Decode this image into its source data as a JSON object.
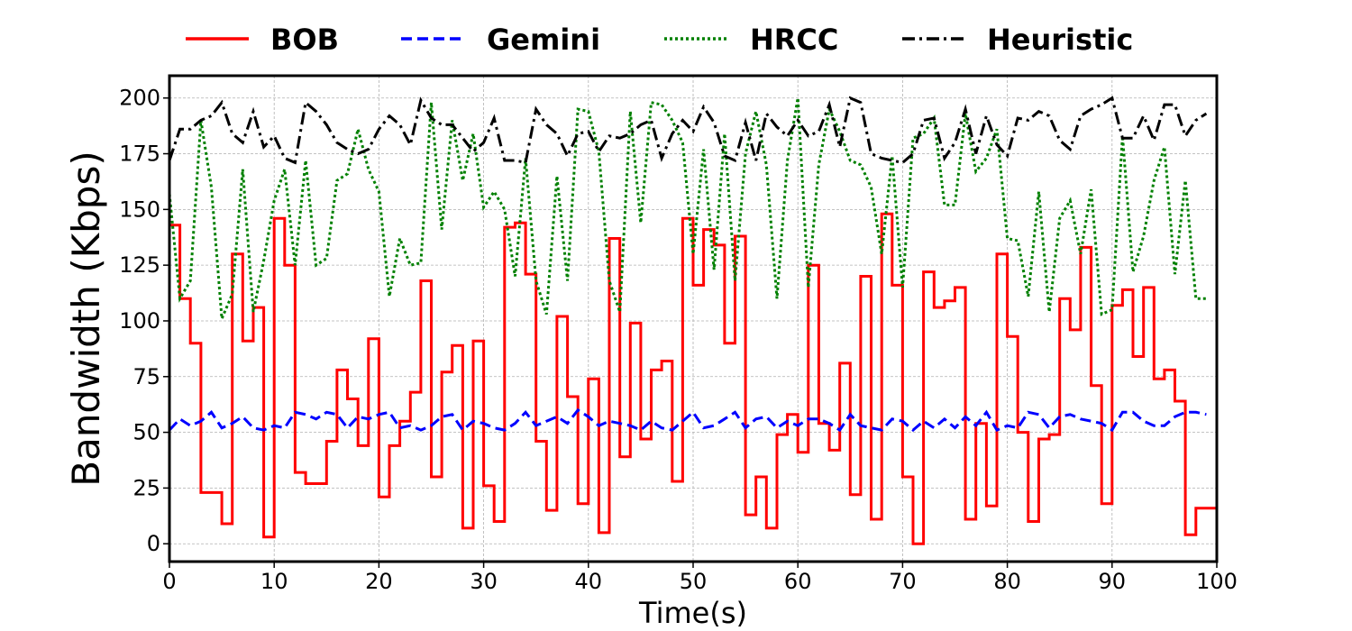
{
  "chart_data": {
    "type": "line",
    "title": "",
    "xlabel": "Time(s)",
    "ylabel": "Bandwidth (Kbps)",
    "xlim": [
      0,
      100
    ],
    "ylim": [
      -8,
      210
    ],
    "xticks": [
      0,
      10,
      20,
      30,
      40,
      50,
      60,
      70,
      80,
      90,
      100
    ],
    "yticks": [
      0,
      25,
      50,
      75,
      100,
      125,
      150,
      175,
      200
    ],
    "grid": true,
    "legend_position": "top, outside plot, horizontal",
    "series": [
      {
        "name": "BOB",
        "color": "#ff0000",
        "style": "solid-step",
        "x": [
          0,
          1,
          2,
          3,
          4,
          5,
          6,
          7,
          8,
          9,
          10,
          11,
          12,
          13,
          14,
          15,
          16,
          17,
          18,
          19,
          20,
          21,
          22,
          23,
          24,
          25,
          26,
          27,
          28,
          29,
          30,
          31,
          32,
          33,
          34,
          35,
          36,
          37,
          38,
          39,
          40,
          41,
          42,
          43,
          44,
          45,
          46,
          47,
          48,
          49,
          50,
          51,
          52,
          53,
          54,
          55,
          56,
          57,
          58,
          59,
          60,
          61,
          62,
          63,
          64,
          65,
          66,
          67,
          68,
          69,
          70,
          71,
          72,
          73,
          74,
          75,
          76,
          77,
          78,
          79,
          80,
          81,
          82,
          83,
          84,
          85,
          86,
          87,
          88,
          89,
          90,
          91,
          92,
          93,
          94,
          95,
          96,
          97,
          98,
          99
        ],
        "values": [
          143,
          110,
          90,
          23,
          23,
          9,
          130,
          91,
          106,
          3,
          146,
          125,
          32,
          27,
          27,
          46,
          78,
          65,
          44,
          92,
          21,
          44,
          55,
          68,
          118,
          30,
          77,
          89,
          7,
          91,
          26,
          10,
          142,
          144,
          121,
          46,
          15,
          102,
          66,
          18,
          74,
          5,
          137,
          39,
          99,
          47,
          78,
          82,
          28,
          146,
          116,
          141,
          134,
          90,
          138,
          13,
          30,
          7,
          49,
          58,
          41,
          125,
          54,
          42,
          81,
          22,
          120,
          11,
          148,
          116,
          30,
          0,
          122,
          106,
          109,
          115,
          11,
          54,
          17,
          130,
          93,
          50,
          10,
          47,
          49,
          110,
          96,
          133,
          71,
          18,
          107,
          114,
          84,
          115,
          74,
          78,
          64,
          4,
          16,
          16
        ]
      },
      {
        "name": "Gemini",
        "color": "#0000ff",
        "style": "dashed",
        "x": [
          0,
          1,
          2,
          3,
          4,
          5,
          6,
          7,
          8,
          9,
          10,
          11,
          12,
          13,
          14,
          15,
          16,
          17,
          18,
          19,
          20,
          21,
          22,
          23,
          24,
          25,
          26,
          27,
          28,
          29,
          30,
          31,
          32,
          33,
          34,
          35,
          36,
          37,
          38,
          39,
          40,
          41,
          42,
          43,
          44,
          45,
          46,
          47,
          48,
          49,
          50,
          51,
          52,
          53,
          54,
          55,
          56,
          57,
          58,
          59,
          60,
          61,
          62,
          63,
          64,
          65,
          66,
          67,
          68,
          69,
          70,
          71,
          72,
          73,
          74,
          75,
          76,
          77,
          78,
          79,
          80,
          81,
          82,
          83,
          84,
          85,
          86,
          87,
          88,
          89,
          90,
          91,
          92,
          93,
          94,
          95,
          96,
          97,
          98,
          99
        ],
        "values": [
          51,
          56,
          53,
          55,
          59,
          52,
          54,
          57,
          52,
          51,
          53,
          52,
          59,
          58,
          56,
          59,
          58,
          52,
          57,
          56,
          58,
          59,
          52,
          53,
          51,
          53,
          57,
          58,
          51,
          55,
          54,
          52,
          51,
          54,
          59,
          53,
          55,
          57,
          54,
          60,
          57,
          53,
          55,
          54,
          53,
          51,
          55,
          52,
          51,
          55,
          59,
          52,
          53,
          56,
          59,
          52,
          56,
          57,
          52,
          55,
          53,
          56,
          56,
          54,
          51,
          58,
          53,
          52,
          51,
          56,
          55,
          51,
          55,
          52,
          56,
          52,
          57,
          53,
          59,
          51,
          53,
          52,
          59,
          58,
          52,
          57,
          58,
          56,
          55,
          54,
          51,
          59,
          59,
          55,
          53,
          53,
          57,
          59,
          59,
          58
        ]
      },
      {
        "name": "HRCC",
        "color": "#008000",
        "style": "dotted",
        "x": [
          0,
          1,
          2,
          3,
          4,
          5,
          6,
          7,
          8,
          9,
          10,
          11,
          12,
          13,
          14,
          15,
          16,
          17,
          18,
          19,
          20,
          21,
          22,
          23,
          24,
          25,
          26,
          27,
          28,
          29,
          30,
          31,
          32,
          33,
          34,
          35,
          36,
          37,
          38,
          39,
          40,
          41,
          42,
          43,
          44,
          45,
          46,
          47,
          48,
          49,
          50,
          51,
          52,
          53,
          54,
          55,
          56,
          57,
          58,
          59,
          60,
          61,
          62,
          63,
          64,
          65,
          66,
          67,
          68,
          69,
          70,
          71,
          72,
          73,
          74,
          75,
          76,
          77,
          78,
          79,
          80,
          81,
          82,
          83,
          84,
          85,
          86,
          87,
          88,
          89,
          90,
          91,
          92,
          93,
          94,
          95,
          96,
          97,
          98,
          99
        ],
        "values": [
          157,
          110,
          118,
          190,
          160,
          101,
          112,
          168,
          104,
          127,
          154,
          168,
          125,
          172,
          125,
          128,
          163,
          166,
          186,
          168,
          158,
          111,
          137,
          125,
          126,
          198,
          141,
          190,
          163,
          184,
          151,
          158,
          150,
          120,
          173,
          118,
          103,
          165,
          118,
          195,
          194,
          176,
          118,
          104,
          194,
          144,
          198,
          197,
          190,
          180,
          130,
          177,
          123,
          184,
          118,
          175,
          194,
          170,
          110,
          172,
          200,
          115,
          170,
          195,
          185,
          172,
          170,
          160,
          130,
          174,
          115,
          182,
          184,
          191,
          152,
          152,
          193,
          167,
          173,
          186,
          137,
          136,
          111,
          158,
          104,
          146,
          154,
          130,
          159,
          103,
          105,
          183,
          122,
          138,
          163,
          178,
          121,
          163,
          110,
          110
        ]
      },
      {
        "name": "Heuristic",
        "color": "#000000",
        "style": "dashdot",
        "x": [
          0,
          1,
          2,
          3,
          4,
          5,
          6,
          7,
          8,
          9,
          10,
          11,
          12,
          13,
          14,
          15,
          16,
          17,
          18,
          19,
          20,
          21,
          22,
          23,
          24,
          25,
          26,
          27,
          28,
          29,
          30,
          31,
          32,
          33,
          34,
          35,
          36,
          37,
          38,
          39,
          40,
          41,
          42,
          43,
          44,
          45,
          46,
          47,
          48,
          49,
          50,
          51,
          52,
          53,
          54,
          55,
          56,
          57,
          58,
          59,
          60,
          61,
          62,
          63,
          64,
          65,
          66,
          67,
          68,
          69,
          70,
          71,
          72,
          73,
          74,
          75,
          76,
          77,
          78,
          79,
          80,
          81,
          82,
          83,
          84,
          85,
          86,
          87,
          88,
          89,
          90,
          91,
          92,
          93,
          94,
          95,
          96,
          97,
          98,
          99
        ],
        "values": [
          172,
          186,
          186,
          190,
          192,
          198,
          184,
          180,
          194,
          178,
          183,
          173,
          171,
          198,
          194,
          188,
          180,
          177,
          175,
          177,
          186,
          192,
          188,
          179,
          199,
          191,
          188,
          188,
          182,
          176,
          180,
          191,
          172,
          172,
          171,
          195,
          188,
          184,
          174,
          184,
          185,
          176,
          183,
          182,
          184,
          188,
          190,
          173,
          184,
          190,
          185,
          196,
          189,
          174,
          172,
          189,
          172,
          193,
          187,
          183,
          190,
          183,
          185,
          197,
          178,
          200,
          198,
          175,
          173,
          172,
          171,
          175,
          190,
          191,
          173,
          180,
          195,
          175,
          192,
          179,
          174,
          191,
          190,
          194,
          192,
          181,
          177,
          192,
          195,
          197,
          200,
          182,
          182,
          192,
          181,
          197,
          197,
          183,
          190,
          193
        ]
      }
    ]
  }
}
